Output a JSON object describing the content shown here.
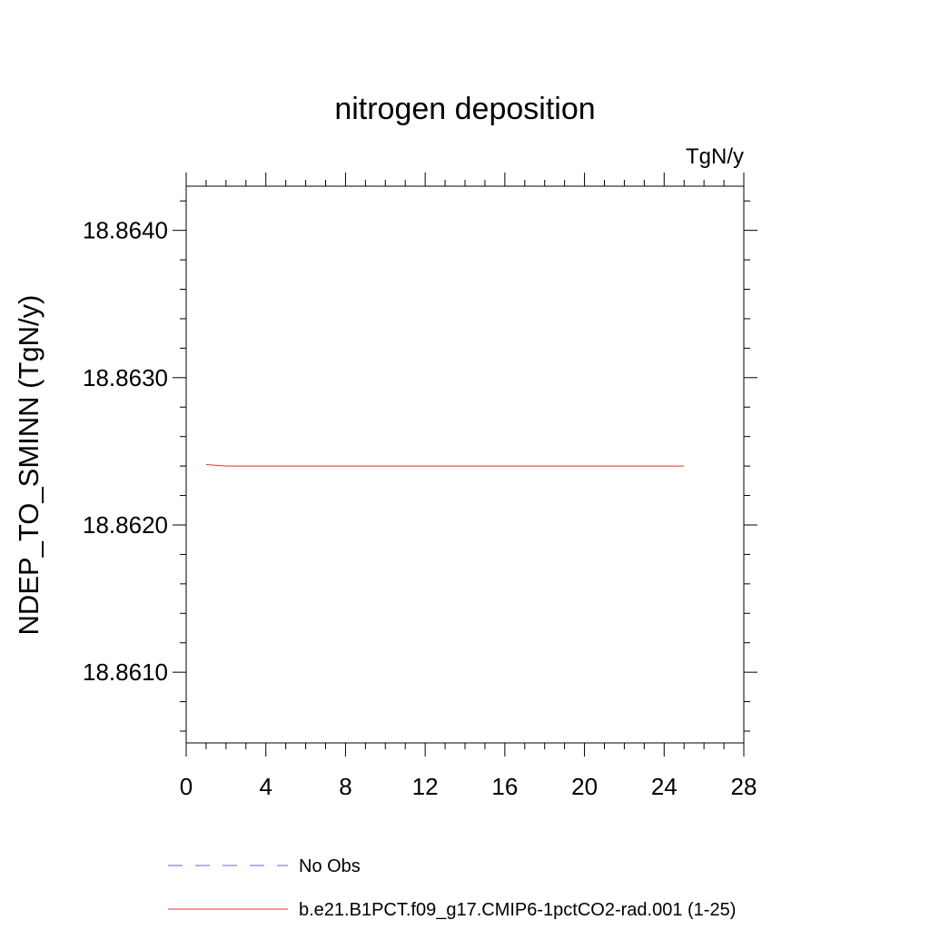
{
  "chart_data": {
    "type": "line",
    "title": "nitrogen deposition",
    "units_label": "TgN/y",
    "xlabel": "",
    "ylabel": "NDEP_TO_SMINN  (TgN/y)",
    "xlim": [
      0,
      28
    ],
    "ylim": [
      18.86052,
      18.8643
    ],
    "x_ticks": [
      0,
      4,
      8,
      12,
      16,
      20,
      24,
      28
    ],
    "x_tick_labels": [
      "0",
      "4",
      "8",
      "12",
      "16",
      "20",
      "24",
      "28"
    ],
    "x_minor_step": 1,
    "y_ticks": [
      18.861,
      18.862,
      18.863,
      18.864
    ],
    "y_tick_labels": [
      "18.8610",
      "18.8620",
      "18.8630",
      "18.8640"
    ],
    "y_minor_step": 0.0002,
    "grid": false,
    "legend_position": "bottom-left",
    "series": [
      {
        "name": "No Obs",
        "color": "#6666cc",
        "dash": "dashed",
        "x": [],
        "y": []
      },
      {
        "name": "b.e21.B1PCT.f09_g17.CMIP6-1pctCO2-rad.001 (1-25)",
        "color": "#e8302a",
        "dash": "solid",
        "x": [
          1,
          2,
          3,
          4,
          5,
          6,
          7,
          8,
          9,
          10,
          11,
          12,
          13,
          14,
          15,
          16,
          17,
          18,
          19,
          20,
          21,
          22,
          23,
          24,
          25
        ],
        "y": [
          18.86241,
          18.8624,
          18.8624,
          18.8624,
          18.8624,
          18.8624,
          18.8624,
          18.8624,
          18.8624,
          18.8624,
          18.8624,
          18.8624,
          18.8624,
          18.8624,
          18.8624,
          18.8624,
          18.8624,
          18.8624,
          18.8624,
          18.8624,
          18.8624,
          18.8624,
          18.8624,
          18.8624,
          18.8624
        ]
      }
    ]
  }
}
